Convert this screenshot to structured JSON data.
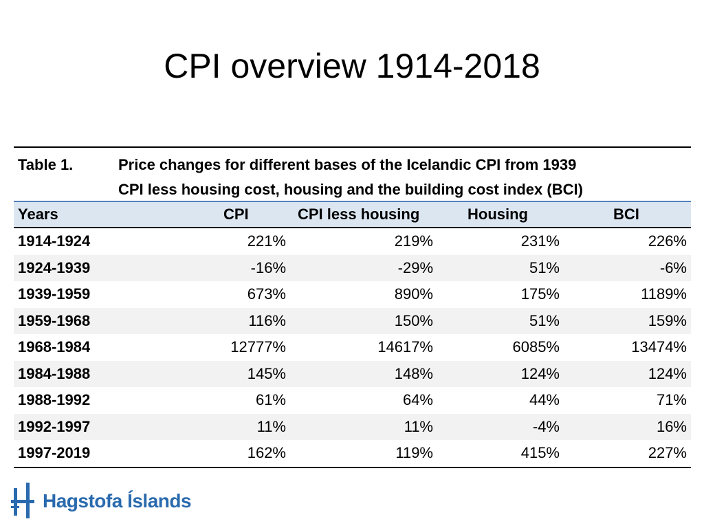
{
  "title": "CPI overview 1914-2018",
  "table": {
    "label": "Table 1.",
    "caption_line1": "Price changes for different bases of the Icelandic CPI from 1939",
    "caption_line2": "CPI less housing cost, housing and the building cost index (BCI)",
    "headers": [
      "Years",
      "CPI",
      "CPI less housing",
      "Housing",
      "BCI"
    ],
    "rows": [
      [
        "1914-1924",
        "221%",
        "219%",
        "231%",
        "226%"
      ],
      [
        "1924-1939",
        "-16%",
        "-29%",
        "51%",
        "-6%"
      ],
      [
        "1939-1959",
        "673%",
        "890%",
        "175%",
        "1189%"
      ],
      [
        "1959-1968",
        "116%",
        "150%",
        "51%",
        "159%"
      ],
      [
        "1968-1984",
        "12777%",
        "14617%",
        "6085%",
        "13474%"
      ],
      [
        "1984-1988",
        "145%",
        "148%",
        "124%",
        "124%"
      ],
      [
        "1988-1992",
        "61%",
        "64%",
        "44%",
        "71%"
      ],
      [
        "1992-1997",
        "11%",
        "11%",
        "-4%",
        "16%"
      ],
      [
        "1997-2019",
        "162%",
        "119%",
        "415%",
        "227%"
      ]
    ]
  },
  "logo": {
    "text": "Hagstofa Íslands",
    "color": "#2a6aae"
  },
  "colors": {
    "header_bg": "#dce6f1",
    "header_rule": "#4f81bd",
    "row_shade": "#f2f2f2"
  }
}
